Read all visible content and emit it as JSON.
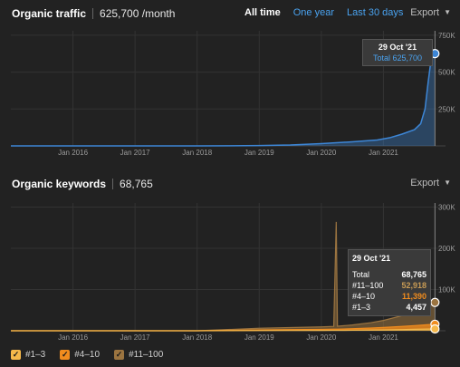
{
  "traffic": {
    "title": "Organic traffic",
    "value": "625,700 /month",
    "ranges": [
      "All time",
      "One year",
      "Last 30 days"
    ],
    "export_label": "Export",
    "tooltip": {
      "date": "29 Oct '21",
      "total": "Total 625,700"
    }
  },
  "keywords": {
    "title": "Organic keywords",
    "value": "68,765",
    "export_label": "Export",
    "tooltip": {
      "date": "29 Oct '21",
      "rows": [
        {
          "label": "Total",
          "value": "68,765"
        },
        {
          "label": "#11–100",
          "value": "52,918"
        },
        {
          "label": "#4–10",
          "value": "11,390"
        },
        {
          "label": "#1–3",
          "value": "4,457"
        }
      ]
    }
  },
  "legend": [
    {
      "label": "#1–3",
      "color": "#f5b84a"
    },
    {
      "label": "#4–10",
      "color": "#f08c1e"
    },
    {
      "label": "#11–100",
      "color": "#9b7440"
    }
  ],
  "colors": {
    "traffic": "#3d86d6",
    "kw_1_3": "#f5b84a",
    "kw_4_10": "#f08c1e",
    "kw_11_100": "#9b7440"
  },
  "chart_data": [
    {
      "type": "area",
      "x": [
        2015.0,
        2016.0,
        2017.0,
        2018.0,
        2019.0,
        2019.5,
        2020.0,
        2020.5,
        2020.9,
        2021.1,
        2021.3,
        2021.5,
        2021.6,
        2021.67,
        2021.72,
        2021.76,
        2021.8,
        2021.83
      ],
      "series": [
        {
          "values": [
            0,
            0,
            0,
            0,
            2000,
            6000,
            15000,
            28000,
            40000,
            55000,
            80000,
            110000,
            150000,
            250000,
            430000,
            560000,
            610000,
            625700
          ]
        }
      ],
      "xticks": [
        "Jan 2016",
        "Jan 2017",
        "Jan 2018",
        "Jan 2019",
        "Jan 2020",
        "Jan 2021"
      ],
      "yticks": [
        "250K",
        "500K",
        "750K"
      ],
      "ylim": [
        0,
        780000
      ],
      "xlim": [
        2015.0,
        2022.0
      ]
    },
    {
      "type": "area",
      "x": [
        2015.0,
        2016.0,
        2017.0,
        2018.0,
        2019.0,
        2019.5,
        2020.0,
        2020.2,
        2020.24,
        2020.26,
        2020.5,
        2020.8,
        2021.0,
        2021.3,
        2021.5,
        2021.7,
        2021.83
      ],
      "series": [
        {
          "name": "#1–3",
          "values": [
            0,
            0,
            0,
            0,
            500,
            700,
            900,
            1000,
            1000,
            1000,
            1200,
            1600,
            2000,
            2800,
            3500,
            4100,
            4457
          ]
        },
        {
          "name": "#4–10",
          "values": [
            0,
            0,
            0,
            0,
            1500,
            2000,
            2500,
            3000,
            3000,
            3000,
            3800,
            5000,
            6000,
            7800,
            9000,
            10500,
            11390
          ]
        },
        {
          "name": "#11–100",
          "values": [
            0,
            0,
            0,
            0,
            4000,
            5000,
            6000,
            6500,
            260000,
            7000,
            9000,
            13000,
            17000,
            26000,
            33000,
            45000,
            52918
          ]
        }
      ],
      "xticks": [
        "Jan 2016",
        "Jan 2017",
        "Jan 2018",
        "Jan 2019",
        "Jan 2020",
        "Jan 2021"
      ],
      "yticks": [
        "100K",
        "200K",
        "300K"
      ],
      "ylim": [
        0,
        310000
      ],
      "xlim": [
        2015.0,
        2022.0
      ]
    }
  ]
}
